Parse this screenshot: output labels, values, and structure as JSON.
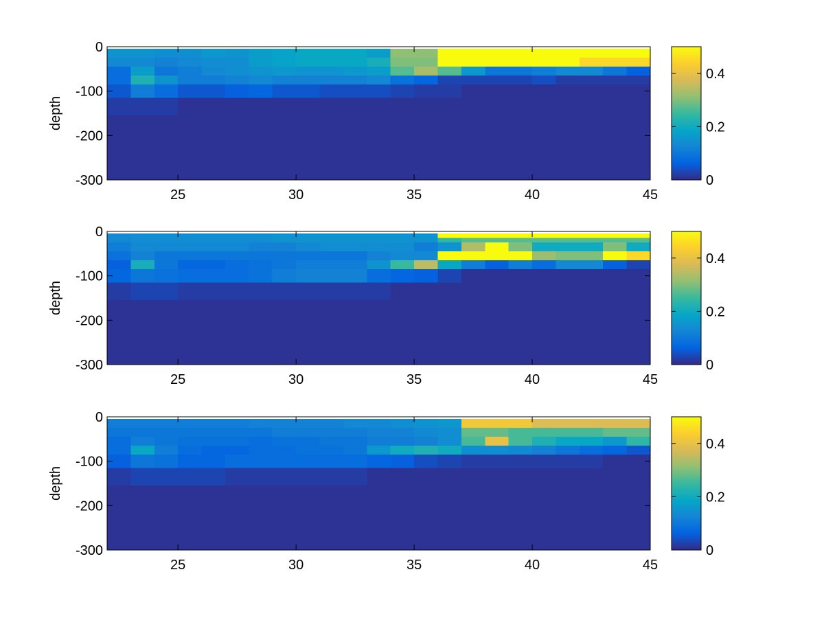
{
  "colormap": [
    "#352a87",
    "#0363e1",
    "#1485d4",
    "#06a7c6",
    "#38b99e",
    "#92bf73",
    "#d9ba56",
    "#fcce2e",
    "#f9fb0e"
  ],
  "chart_data": [
    {
      "type": "heatmap",
      "title": "",
      "xlabel": "",
      "ylabel": "depth",
      "xlim": [
        22,
        45
      ],
      "ylim": [
        -300,
        0
      ],
      "xticks": [
        "25",
        "30",
        "35",
        "40",
        "45"
      ],
      "yticks": [
        "0",
        "-100",
        "-200",
        "-300"
      ],
      "clim": [
        0,
        0.5
      ],
      "colorbar_ticks": [
        "0",
        "0.2",
        "0.4"
      ],
      "x": [
        22.5,
        23.5,
        24.5,
        25.5,
        26.5,
        27.5,
        28.5,
        29.5,
        30.5,
        31.5,
        32.5,
        33.5,
        34.5,
        35.5,
        36.5,
        37.5,
        38.5,
        39.5,
        40.5,
        41.5,
        42.5,
        43.5,
        44.5
      ],
      "depth_bins": [
        [
          0,
          -5
        ],
        [
          -5,
          -25
        ],
        [
          -25,
          -45
        ],
        [
          -45,
          -65
        ],
        [
          -65,
          -85
        ],
        [
          -85,
          -115
        ],
        [
          -115,
          -155
        ],
        [
          -155,
          -300
        ]
      ],
      "z": [
        [
          null,
          null,
          null,
          null,
          null,
          null,
          null,
          null,
          null,
          null,
          null,
          null,
          null,
          null,
          null,
          null,
          null,
          null,
          null,
          null,
          null,
          null,
          null
        ],
        [
          0.15,
          0.15,
          0.14,
          0.14,
          0.16,
          0.15,
          0.17,
          0.18,
          0.19,
          0.19,
          0.19,
          0.17,
          0.31,
          0.31,
          0.5,
          0.5,
          0.5,
          0.5,
          0.5,
          0.5,
          0.5,
          0.5,
          0.5
        ],
        [
          0.13,
          0.13,
          0.12,
          0.13,
          0.14,
          0.14,
          0.17,
          0.18,
          0.19,
          0.19,
          0.19,
          0.21,
          0.3,
          0.3,
          0.5,
          0.5,
          0.5,
          0.5,
          0.5,
          0.5,
          0.45,
          0.45,
          0.45
        ],
        [
          0.08,
          0.17,
          0.1,
          0.11,
          0.13,
          0.14,
          0.15,
          0.16,
          0.15,
          0.15,
          0.16,
          0.17,
          0.27,
          0.33,
          0.27,
          0.16,
          0.1,
          0.1,
          0.11,
          0.13,
          0.13,
          0.1,
          0.06
        ],
        [
          0.08,
          0.22,
          0.15,
          0.11,
          0.11,
          0.12,
          0.13,
          0.12,
          0.12,
          0.12,
          0.12,
          0.13,
          0.09,
          0.07,
          0.03,
          0.03,
          0.03,
          0.03,
          0.04,
          0.02,
          0.02,
          0.02,
          0.02
        ],
        [
          0.05,
          0.11,
          0.08,
          0.05,
          0.05,
          0.06,
          0.07,
          0.05,
          0.05,
          0.04,
          0.04,
          0.04,
          0.03,
          0.02,
          0.02,
          0.01,
          0.01,
          0.01,
          0.01,
          0.01,
          0.01,
          0.01,
          0.01
        ],
        [
          0.02,
          0.02,
          0.02,
          0.01,
          0.01,
          0.01,
          0.01,
          0.01,
          0.01,
          0.01,
          0.01,
          0.01,
          0.01,
          0.01,
          0.01,
          0.01,
          0.01,
          0.01,
          0.01,
          0.01,
          0.01,
          0.01,
          0.01
        ],
        [
          0.01,
          0.01,
          0.01,
          0.01,
          0.01,
          0.01,
          0.01,
          0.01,
          0.01,
          0.01,
          0.01,
          0.01,
          0.01,
          0.01,
          0.01,
          0.01,
          0.01,
          0.01,
          0.01,
          0.01,
          0.01,
          0.01,
          0.01
        ]
      ]
    },
    {
      "type": "heatmap",
      "title": "",
      "xlabel": "",
      "ylabel": "depth",
      "xlim": [
        22,
        45
      ],
      "ylim": [
        -300,
        0
      ],
      "xticks": [
        "25",
        "30",
        "35",
        "40",
        "45"
      ],
      "yticks": [
        "0",
        "-100",
        "-200",
        "-300"
      ],
      "clim": [
        0,
        0.5
      ],
      "colorbar_ticks": [
        "0",
        "0.2",
        "0.4"
      ],
      "x": [
        22.5,
        23.5,
        24.5,
        25.5,
        26.5,
        27.5,
        28.5,
        29.5,
        30.5,
        31.5,
        32.5,
        33.5,
        34.5,
        35.5,
        36.5,
        37.5,
        38.5,
        39.5,
        40.5,
        41.5,
        42.5,
        43.5,
        44.5
      ],
      "depth_bins": [
        [
          0,
          -5
        ],
        [
          -5,
          -15
        ],
        [
          -15,
          -25
        ],
        [
          -25,
          -45
        ],
        [
          -45,
          -65
        ],
        [
          -65,
          -85
        ],
        [
          -85,
          -115
        ],
        [
          -115,
          -155
        ],
        [
          -155,
          -300
        ]
      ],
      "z": [
        [
          null,
          null,
          null,
          null,
          null,
          null,
          null,
          null,
          null,
          null,
          null,
          null,
          null,
          null,
          null,
          null,
          null,
          null,
          null,
          null,
          null,
          null,
          null
        ],
        [
          0.13,
          0.14,
          0.14,
          0.14,
          0.14,
          0.14,
          0.14,
          0.15,
          0.15,
          0.15,
          0.15,
          0.15,
          0.15,
          0.15,
          0.5,
          0.5,
          0.5,
          0.5,
          0.5,
          0.5,
          0.5,
          0.5,
          0.5
        ],
        [
          0.13,
          0.14,
          0.14,
          0.14,
          0.14,
          0.14,
          0.14,
          0.15,
          0.15,
          0.15,
          0.15,
          0.15,
          0.15,
          0.15,
          0.24,
          0.27,
          0.27,
          0.27,
          0.27,
          0.27,
          0.27,
          0.27,
          0.27
        ],
        [
          0.11,
          0.13,
          0.13,
          0.13,
          0.13,
          0.13,
          0.12,
          0.12,
          0.13,
          0.14,
          0.14,
          0.14,
          0.14,
          0.11,
          0.15,
          0.34,
          0.5,
          0.3,
          0.2,
          0.2,
          0.2,
          0.3,
          0.2
        ],
        [
          0.09,
          0.12,
          0.1,
          0.1,
          0.1,
          0.1,
          0.1,
          0.1,
          0.1,
          0.1,
          0.1,
          0.12,
          0.13,
          0.13,
          0.5,
          0.5,
          0.5,
          0.5,
          0.32,
          0.3,
          0.3,
          0.5,
          0.45
        ],
        [
          0.06,
          0.21,
          0.1,
          0.07,
          0.07,
          0.08,
          0.09,
          0.1,
          0.11,
          0.11,
          0.11,
          0.15,
          0.25,
          0.35,
          0.19,
          0.11,
          0.06,
          0.11,
          0.08,
          0.13,
          0.13,
          0.06,
          0.03
        ],
        [
          0.07,
          0.1,
          0.09,
          0.08,
          0.08,
          0.08,
          0.09,
          0.11,
          0.12,
          0.12,
          0.12,
          0.08,
          0.07,
          0.06,
          0.03,
          0.01,
          0.01,
          0.01,
          0.01,
          0.01,
          0.01,
          0.01,
          0.01
        ],
        [
          0.02,
          0.03,
          0.03,
          0.02,
          0.02,
          0.02,
          0.02,
          0.02,
          0.02,
          0.02,
          0.02,
          0.02,
          0.01,
          0.01,
          0.01,
          0.01,
          0.01,
          0.01,
          0.01,
          0.01,
          0.01,
          0.01,
          0.01
        ],
        [
          0.01,
          0.01,
          0.01,
          0.01,
          0.01,
          0.01,
          0.01,
          0.01,
          0.01,
          0.01,
          0.01,
          0.01,
          0.01,
          0.01,
          0.01,
          0.01,
          0.01,
          0.01,
          0.01,
          0.01,
          0.01,
          0.01,
          0.01
        ]
      ]
    },
    {
      "type": "heatmap",
      "title": "",
      "xlabel": "",
      "ylabel": "depth",
      "xlim": [
        22,
        45
      ],
      "ylim": [
        -300,
        0
      ],
      "xticks": [
        "25",
        "30",
        "35",
        "40",
        "45"
      ],
      "yticks": [
        "0",
        "-100",
        "-200",
        "-300"
      ],
      "clim": [
        0,
        0.5
      ],
      "colorbar_ticks": [
        "0",
        "0.2",
        "0.4"
      ],
      "x": [
        22.5,
        23.5,
        24.5,
        25.5,
        26.5,
        27.5,
        28.5,
        29.5,
        30.5,
        31.5,
        32.5,
        33.5,
        34.5,
        35.5,
        36.5,
        37.5,
        38.5,
        39.5,
        40.5,
        41.5,
        42.5,
        43.5,
        44.5
      ],
      "depth_bins": [
        [
          0,
          -5
        ],
        [
          -5,
          -25
        ],
        [
          -25,
          -45
        ],
        [
          -45,
          -65
        ],
        [
          -65,
          -85
        ],
        [
          -85,
          -115
        ],
        [
          -115,
          -155
        ],
        [
          -155,
          -300
        ]
      ],
      "z": [
        [
          null,
          null,
          null,
          null,
          null,
          null,
          null,
          null,
          null,
          null,
          null,
          null,
          null,
          null,
          null,
          null,
          null,
          null,
          null,
          null,
          null,
          null,
          null
        ],
        [
          0.11,
          0.11,
          0.11,
          0.11,
          0.11,
          0.11,
          0.12,
          0.12,
          0.12,
          0.12,
          0.13,
          0.13,
          0.14,
          0.15,
          0.16,
          0.42,
          0.42,
          0.42,
          0.38,
          0.38,
          0.38,
          0.38,
          0.38
        ],
        [
          0.1,
          0.1,
          0.1,
          0.1,
          0.1,
          0.1,
          0.1,
          0.11,
          0.11,
          0.11,
          0.11,
          0.12,
          0.12,
          0.13,
          0.14,
          0.28,
          0.28,
          0.26,
          0.26,
          0.26,
          0.26,
          0.28,
          0.28
        ],
        [
          0.08,
          0.11,
          0.1,
          0.09,
          0.09,
          0.09,
          0.08,
          0.09,
          0.09,
          0.1,
          0.1,
          0.11,
          0.11,
          0.12,
          0.14,
          0.26,
          0.4,
          0.26,
          0.22,
          0.19,
          0.19,
          0.16,
          0.24
        ],
        [
          0.08,
          0.19,
          0.11,
          0.08,
          0.07,
          0.07,
          0.08,
          0.08,
          0.09,
          0.09,
          0.1,
          0.16,
          0.2,
          0.22,
          0.2,
          0.14,
          0.14,
          0.13,
          0.12,
          0.1,
          0.08,
          0.07,
          0.05
        ],
        [
          0.06,
          0.1,
          0.09,
          0.07,
          0.07,
          0.08,
          0.08,
          0.08,
          0.08,
          0.08,
          0.08,
          0.07,
          0.06,
          0.04,
          0.03,
          0.02,
          0.02,
          0.02,
          0.02,
          0.02,
          0.02,
          0.01,
          0.01
        ],
        [
          0.02,
          0.03,
          0.03,
          0.03,
          0.03,
          0.02,
          0.02,
          0.02,
          0.02,
          0.02,
          0.02,
          0.01,
          0.01,
          0.01,
          0.01,
          0.01,
          0.01,
          0.01,
          0.01,
          0.01,
          0.01,
          0.01,
          0.01
        ],
        [
          0.01,
          0.01,
          0.01,
          0.01,
          0.01,
          0.01,
          0.01,
          0.01,
          0.01,
          0.01,
          0.01,
          0.01,
          0.01,
          0.01,
          0.01,
          0.01,
          0.01,
          0.01,
          0.01,
          0.01,
          0.01,
          0.01,
          0.01
        ]
      ]
    }
  ]
}
